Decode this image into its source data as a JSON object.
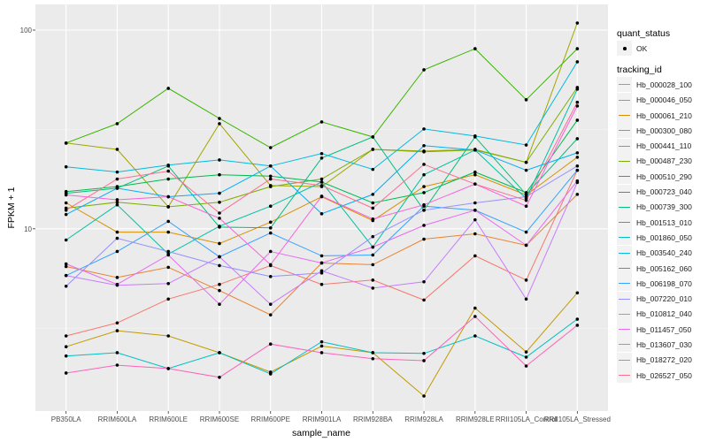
{
  "chart_data": {
    "type": "line",
    "xlabel": "sample_name",
    "ylabel": "FPKM + 1",
    "yscale": "log10",
    "ylim": [
      1.21,
      134.6
    ],
    "ytick_labels": [
      "100",
      "10"
    ],
    "yticks": [
      100,
      10
    ],
    "yminor": [
      31.62,
      3.162
    ],
    "grid": true,
    "legend_position": "right",
    "categories": [
      "PB350LA",
      "RRIM600LA",
      "RRIM600LE",
      "RRIM600SE",
      "RRIM600PE",
      "RRIM901LA",
      "RRIM928BA",
      "RRIM928LA",
      "RRIM928LE",
      "RRII105LA_Control",
      "RRII105LA_Stressed"
    ],
    "legend_shape": {
      "title": "quant_status",
      "entries": [
        "OK"
      ]
    },
    "legend_color_title": "tracking_id",
    "series": [
      {
        "name": "Hb_000028_100",
        "color": "#F8766D",
        "values": [
          2.89,
          3.36,
          4.43,
          5.25,
          6.53,
          5.25,
          5.52,
          4.38,
          7.31,
          5.52,
          19.7
        ]
      },
      {
        "name": "Hb_000046_050",
        "color": "#EA8331",
        "values": [
          6.46,
          5.69,
          6.4,
          4.89,
          3.69,
          6.73,
          6.6,
          8.87,
          9.43,
          8.26,
          14.9
        ]
      },
      {
        "name": "Hb_000061_210",
        "color": "#D89000",
        "values": [
          13.5,
          9.62,
          9.62,
          8.43,
          10.8,
          14.5,
          11.0,
          16.3,
          18.7,
          14.8,
          22.9
        ]
      },
      {
        "name": "Hb_000300_080",
        "color": "#C09B00",
        "values": [
          2.55,
          3.07,
          2.89,
          2.38,
          1.9,
          2.57,
          2.38,
          1.44,
          3.99,
          2.4,
          4.76
        ]
      },
      {
        "name": "Hb_000441_110",
        "color": "#A3A500",
        "values": [
          27.0,
          25.1,
          12.9,
          33.8,
          16.5,
          16.3,
          25.1,
          24.6,
          25.1,
          21.6,
          108.5
        ]
      },
      {
        "name": "Hb_000487_230",
        "color": "#7CAE00",
        "values": [
          12.7,
          13.6,
          12.9,
          13.6,
          16.3,
          17.8,
          25.1,
          24.4,
          24.9,
          21.6,
          51.4
        ]
      },
      {
        "name": "Hb_000510_290",
        "color": "#39B600",
        "values": [
          27.0,
          33.8,
          50.9,
          35.9,
          25.6,
          34.5,
          29.0,
          63.1,
          80.6,
          44.6,
          80.6
        ]
      },
      {
        "name": "Hb_000723_040",
        "color": "#00BB4E",
        "values": [
          15.4,
          16.3,
          17.8,
          18.7,
          18.4,
          17.2,
          13.5,
          15.2,
          19.3,
          15.2,
          35.2
        ]
      },
      {
        "name": "Hb_000739_300",
        "color": "#00BF7D",
        "values": [
          15.1,
          16.0,
          20.7,
          10.2,
          10.1,
          22.7,
          29.0,
          12.4,
          29.0,
          14.9,
          28.4
        ]
      },
      {
        "name": "Hb_001513_010",
        "color": "#00C1A3",
        "values": [
          8.78,
          13.2,
          7.46,
          10.3,
          13.0,
          17.2,
          8.09,
          18.7,
          24.9,
          14.2,
          50.4
        ]
      },
      {
        "name": "Hb_001860_050",
        "color": "#00BFC4",
        "values": [
          2.29,
          2.38,
          1.98,
          2.38,
          1.86,
          2.7,
          2.38,
          2.36,
          2.89,
          2.26,
          3.51
        ]
      },
      {
        "name": "Hb_003540_240",
        "color": "#00BAE0",
        "values": [
          20.5,
          19.3,
          20.9,
          22.2,
          20.7,
          23.9,
          19.9,
          31.8,
          29.3,
          26.4,
          69.2
        ]
      },
      {
        "name": "Hb_005162_060",
        "color": "#00B0F6",
        "values": [
          11.8,
          16.0,
          14.5,
          15.1,
          20.7,
          11.9,
          14.9,
          26.2,
          24.9,
          19.7,
          24.1
        ]
      },
      {
        "name": "Hb_006198_070",
        "color": "#35A2FF",
        "values": [
          5.82,
          7.69,
          10.9,
          7.23,
          9.52,
          7.31,
          7.38,
          13.0,
          12.4,
          9.62,
          19.7
        ]
      },
      {
        "name": "Hb_007220_010",
        "color": "#9590FF",
        "values": [
          5.14,
          8.96,
          7.69,
          6.53,
          5.75,
          5.99,
          9.13,
          12.4,
          13.5,
          14.5,
          20.7
        ]
      },
      {
        "name": "Hb_010812_040",
        "color": "#C77CFF",
        "values": [
          5.82,
          5.2,
          5.3,
          7.23,
          4.17,
          6.15,
          5.03,
          5.41,
          11.1,
          4.43,
          17.1
        ]
      },
      {
        "name": "Hb_011457_050",
        "color": "#E76BF3",
        "values": [
          6.66,
          5.25,
          7.38,
          4.17,
          7.69,
          6.73,
          8.09,
          10.4,
          12.4,
          8.26,
          17.4
        ]
      },
      {
        "name": "Hb_013607_030",
        "color": "#FA62DB",
        "values": [
          14.8,
          14.0,
          14.5,
          11.3,
          6.6,
          14.6,
          11.2,
          13.2,
          16.8,
          13.0,
          41.5
        ]
      },
      {
        "name": "Hb_018272_020",
        "color": "#FF62BC",
        "values": [
          1.88,
          2.06,
          1.98,
          1.79,
          2.63,
          2.38,
          2.22,
          2.17,
          3.62,
          2.04,
          3.27
        ]
      },
      {
        "name": "Hb_026527_050",
        "color": "#FF6C91",
        "values": [
          12.4,
          17.8,
          19.5,
          12.0,
          17.8,
          16.5,
          12.7,
          21.1,
          16.8,
          13.9,
          43.3
        ]
      }
    ]
  }
}
